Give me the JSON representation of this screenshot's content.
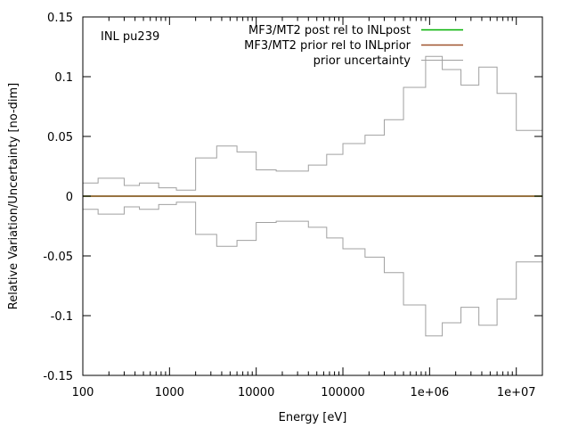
{
  "chart_data": {
    "type": "line",
    "xlabel": "Energy [eV]",
    "ylabel": "Relative Variation/Uncertainty [no-dim]",
    "annotation": "INL pu239",
    "xscale": "log",
    "xlim": [
      100,
      20000000
    ],
    "ylim": [
      -0.15,
      0.15
    ],
    "x_ticks": [
      100,
      1000,
      10000,
      100000,
      1000000,
      10000000
    ],
    "x_tick_labels": [
      "100",
      "1000",
      "10000",
      "100000",
      "1e+06",
      "1e+07"
    ],
    "y_ticks": [
      -0.15,
      -0.1,
      -0.05,
      0,
      0.05,
      0.1,
      0.15
    ],
    "y_tick_labels": [
      "-0.15",
      "-0.1",
      "-0.05",
      "0",
      "0.05",
      "0.1",
      "0.15"
    ],
    "legend_position": "top-right",
    "series": [
      {
        "name": "MF3/MT2 post rel to INLpost",
        "color": "#00b000",
        "style": "line",
        "x": [
          100,
          20000000
        ],
        "y": [
          0,
          0
        ]
      },
      {
        "name": "MF3/MT2 prior rel to INLprior",
        "color": "#a0522d",
        "style": "line",
        "x": [
          100,
          20000000
        ],
        "y": [
          0,
          0
        ]
      },
      {
        "name": "prior uncertainty",
        "color": "#a0a0a0",
        "style": "step-symmetric",
        "edges": [
          100,
          150,
          300,
          450,
          750,
          1200,
          2000,
          3500,
          6000,
          10000,
          17000,
          30000,
          40000,
          65000,
          100000,
          180000,
          300000,
          500000,
          900000,
          1400000,
          2300000,
          3700000,
          6000000,
          10000000,
          20000000
        ],
        "values": [
          0.011,
          0.015,
          0.009,
          0.011,
          0.007,
          0.005,
          0.032,
          0.042,
          0.037,
          0.022,
          0.021,
          0.021,
          0.026,
          0.035,
          0.044,
          0.051,
          0.064,
          0.091,
          0.117,
          0.106,
          0.093,
          0.108,
          0.086,
          0.055
        ]
      }
    ]
  }
}
